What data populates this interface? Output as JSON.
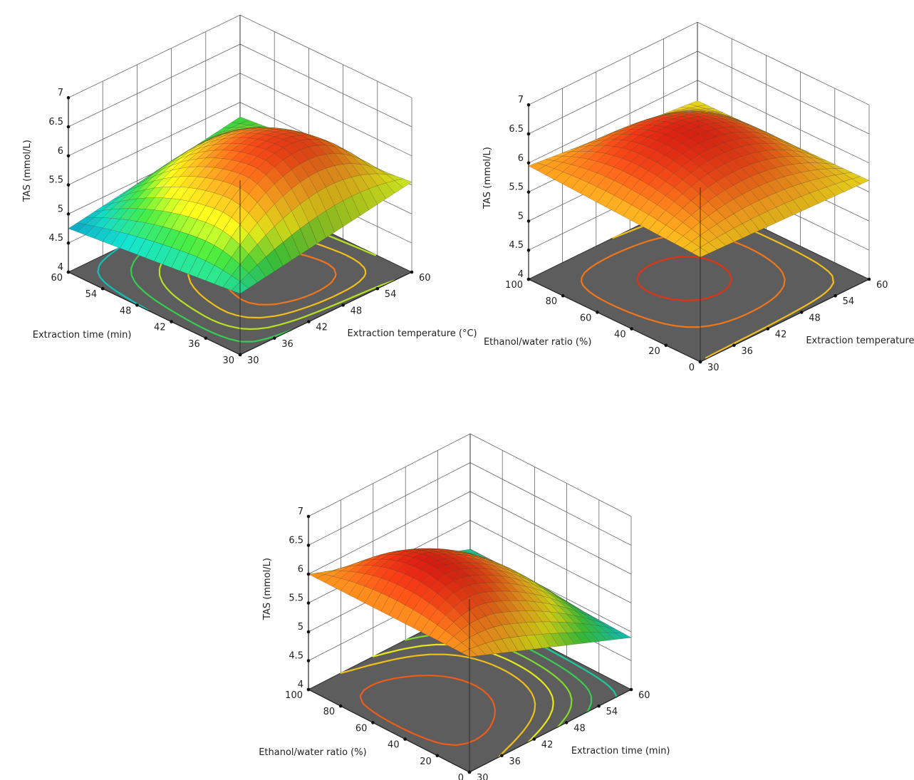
{
  "chart_data": [
    {
      "type": "surface",
      "zlabel": "TAS (mmol/L)",
      "xlabel": "Extraction temperature (°C)",
      "ylabel": "Extraction time (min)",
      "xlim": [
        30,
        60
      ],
      "ylim": [
        30,
        60
      ],
      "zlim": [
        4,
        7
      ],
      "x_ticks": [
        "30",
        "36",
        "42",
        "48",
        "54",
        "60"
      ],
      "y_ticks": [
        "30",
        "36",
        "42",
        "48",
        "54",
        "60"
      ],
      "z_ticks": [
        "4",
        "4.5",
        "5",
        "5.5",
        "6",
        "6.5",
        "7"
      ],
      "grid": true,
      "corners": [
        {
          "x": 30,
          "y": 30,
          "z": 5.05
        },
        {
          "x": 60,
          "y": 30,
          "z": 5.55
        },
        {
          "x": 30,
          "y": 60,
          "z": 4.75
        },
        {
          "x": 60,
          "y": 60,
          "z": 5.25
        }
      ],
      "peak": {
        "x": 46,
        "y": 40,
        "z": 6.35
      },
      "contour_levels": [
        4.9,
        5.2,
        5.5,
        5.8,
        6.1
      ]
    },
    {
      "type": "surface",
      "zlabel": "TAS (mmol/L)",
      "xlabel": "Extraction temperature (°C)",
      "ylabel": "Ethanol/water ratio (%)",
      "xlim": [
        30,
        60
      ],
      "ylim": [
        0,
        100
      ],
      "zlim": [
        4,
        7
      ],
      "x_ticks": [
        "30",
        "36",
        "42",
        "48",
        "54",
        "60"
      ],
      "y_ticks": [
        "0",
        "20",
        "40",
        "60",
        "80",
        "100"
      ],
      "z_ticks": [
        "4",
        "4.5",
        "5",
        "5.5",
        "6",
        "6.5",
        "7"
      ],
      "grid": true,
      "corners": [
        {
          "x": 30,
          "y": 0,
          "z": 5.8
        },
        {
          "x": 60,
          "y": 0,
          "z": 5.7
        },
        {
          "x": 30,
          "y": 100,
          "z": 5.95
        },
        {
          "x": 60,
          "y": 100,
          "z": 5.65
        }
      ],
      "peak": {
        "x": 45,
        "y": 55,
        "z": 6.5
      },
      "contour_levels": [
        5.5,
        5.8,
        6.1,
        6.4
      ]
    },
    {
      "type": "surface",
      "zlabel": "TAS (mmol/L)",
      "xlabel": "Extraction time (min)",
      "ylabel": "Ethanol/water ratio (%)",
      "xlim": [
        30,
        60
      ],
      "ylim": [
        0,
        100
      ],
      "zlim": [
        4,
        7
      ],
      "x_ticks": [
        "30",
        "36",
        "42",
        "48",
        "54",
        "60"
      ],
      "y_ticks": [
        "0",
        "20",
        "40",
        "60",
        "80",
        "100"
      ],
      "z_ticks": [
        "4",
        "4.5",
        "5",
        "5.5",
        "6",
        "6.5",
        "7"
      ],
      "grid": true,
      "corners": [
        {
          "x": 30,
          "y": 0,
          "z": 6.0
        },
        {
          "x": 60,
          "y": 0,
          "z": 4.9
        },
        {
          "x": 30,
          "y": 100,
          "z": 6.0
        },
        {
          "x": 60,
          "y": 100,
          "z": 5.0
        }
      ],
      "peak": {
        "x": 40,
        "y": 50,
        "z": 6.5
      },
      "contour_levels": [
        5.0,
        5.2,
        5.4,
        5.6,
        5.8,
        6.2
      ]
    }
  ],
  "colors": {
    "floor": "#5d5d5d",
    "grid": "#666666",
    "axis": "#222222",
    "colormap": [
      "#0a7fc4",
      "#12c7b4",
      "#3fcf3a",
      "#e6e81a",
      "#f7a21e",
      "#ea4a16",
      "#d21010"
    ]
  }
}
